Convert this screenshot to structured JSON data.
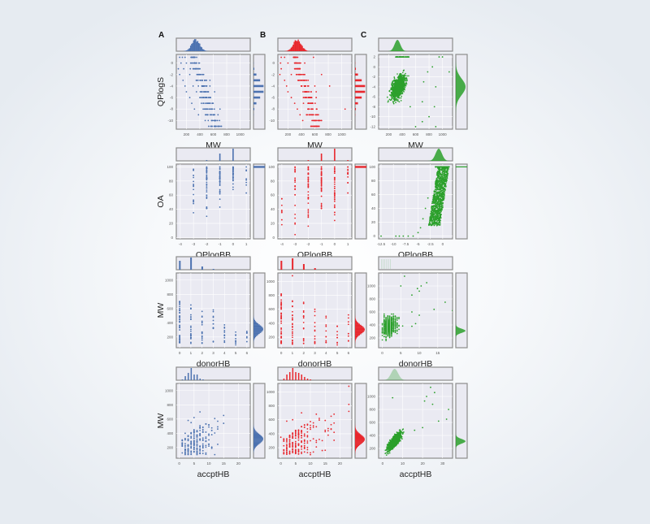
{
  "figure": {
    "column_labels": [
      "A",
      "B",
      "C"
    ],
    "colors": {
      "A": "#4c72b0",
      "B": "#e8272d",
      "C": "#2ca02c",
      "panel_bg": "#eaeaf2",
      "panel_border": "#8c8c8c",
      "grid": "#ffffff",
      "tick_text": "#555555",
      "label_text": "#222222"
    }
  },
  "chart_data": [
    {
      "type": "scatter",
      "panel": "A-row1",
      "column": "A",
      "xlabel": "MW",
      "ylabel": "QPlogS",
      "xticks": [
        200,
        400,
        600,
        800,
        1000
      ],
      "xlim": [
        50,
        1150
      ],
      "yticks": [
        0,
        -2,
        -4,
        -6,
        -8,
        -10
      ],
      "ylim": [
        -11.5,
        1.5
      ],
      "marginal_x": "histogram centered ~320 MW",
      "marginal_y": "histogram bars at integer levels, peak ~ -4 to -5",
      "points_desc": "discrete horizontal bands at integer QPlogS; higher MW → lower QPlogS",
      "points": [
        [
          100,
          1
        ],
        [
          140,
          1
        ],
        [
          180,
          1
        ],
        [
          120,
          0
        ],
        [
          200,
          0
        ],
        [
          280,
          0
        ],
        [
          80,
          -1
        ],
        [
          160,
          -1
        ],
        [
          300,
          -1
        ],
        [
          100,
          -2
        ],
        [
          250,
          -2
        ],
        [
          400,
          -2
        ],
        [
          150,
          -3
        ],
        [
          350,
          -3
        ],
        [
          500,
          -3
        ],
        [
          550,
          -3
        ],
        [
          180,
          -4
        ],
        [
          300,
          -4
        ],
        [
          450,
          -4
        ],
        [
          550,
          -4
        ],
        [
          200,
          -5
        ],
        [
          350,
          -5
        ],
        [
          480,
          -5
        ],
        [
          620,
          -5
        ],
        [
          250,
          -6
        ],
        [
          400,
          -6
        ],
        [
          500,
          -6
        ],
        [
          280,
          -7
        ],
        [
          450,
          -7
        ],
        [
          320,
          -8
        ],
        [
          450,
          -8
        ],
        [
          700,
          -8
        ],
        [
          380,
          -9
        ],
        [
          520,
          -9
        ],
        [
          480,
          -10
        ],
        [
          620,
          -10
        ],
        [
          580,
          -11
        ]
      ]
    },
    {
      "type": "scatter",
      "panel": "B-row1",
      "column": "B",
      "xlabel": "MW",
      "ylabel": "",
      "xticks": [
        200,
        400,
        600,
        800,
        1000
      ],
      "xlim": [
        50,
        1150
      ],
      "yticks": [
        0,
        -2,
        -4,
        -6,
        -8,
        -10
      ],
      "ylim": [
        -11.5,
        1.5
      ],
      "marginal_x": "histogram centered ~330 MW",
      "marginal_y": "histogram bars at integer levels",
      "points": [
        [
          100,
          1
        ],
        [
          150,
          1
        ],
        [
          580,
          1
        ],
        [
          90,
          0
        ],
        [
          200,
          0
        ],
        [
          300,
          0
        ],
        [
          450,
          0
        ],
        [
          100,
          -1
        ],
        [
          300,
          -1
        ],
        [
          80,
          -2
        ],
        [
          250,
          -2
        ],
        [
          450,
          -2
        ],
        [
          700,
          -2
        ],
        [
          150,
          -3
        ],
        [
          350,
          -3
        ],
        [
          500,
          -3
        ],
        [
          180,
          -4
        ],
        [
          400,
          -4
        ],
        [
          600,
          -4
        ],
        [
          820,
          -4
        ],
        [
          200,
          -5
        ],
        [
          450,
          -5
        ],
        [
          620,
          -5
        ],
        [
          250,
          -6
        ],
        [
          450,
          -6
        ],
        [
          620,
          -6
        ],
        [
          300,
          -7
        ],
        [
          500,
          -7
        ],
        [
          340,
          -8
        ],
        [
          500,
          -8
        ],
        [
          1050,
          -8
        ],
        [
          380,
          -9
        ],
        [
          620,
          -9
        ],
        [
          420,
          -10
        ],
        [
          600,
          -10
        ],
        [
          700,
          -10
        ],
        [
          580,
          -11
        ]
      ]
    },
    {
      "type": "scatter",
      "panel": "C-row1",
      "column": "C",
      "xlabel": "MW",
      "ylabel": "",
      "xticks": [
        200,
        400,
        600,
        800,
        1000
      ],
      "xlim": [
        50,
        1150
      ],
      "yticks": [
        2,
        0,
        -2,
        -4,
        -6,
        -8,
        -10,
        -12
      ],
      "ylim": [
        -12.5,
        2.5
      ],
      "marginal_x": "density peak ~330 MW",
      "marginal_y": "density peak ~ -4",
      "points_desc": "dense continuous cloud, negative correlation",
      "points": [
        [
          850,
          0
        ],
        [
          1000,
          2
        ],
        [
          950,
          2
        ],
        [
          720,
          -3
        ],
        [
          780,
          -1
        ],
        [
          1100,
          -1
        ],
        [
          900,
          -4
        ],
        [
          700,
          -7
        ],
        [
          880,
          -8
        ],
        [
          800,
          -10
        ],
        [
          700,
          -11
        ],
        [
          900,
          -12
        ],
        [
          600,
          -12
        ],
        [
          520,
          -8
        ]
      ]
    },
    {
      "type": "scatter",
      "panel": "A-row2",
      "column": "A",
      "xlabel": "QPlogBB",
      "ylabel": "OA",
      "xticks": [
        -4,
        -3,
        -2,
        -1,
        0,
        1
      ],
      "xlim": [
        -4.3,
        1.3
      ],
      "yticks": [
        0,
        20,
        40,
        60,
        80,
        100
      ],
      "ylim": [
        -2,
        104
      ],
      "marginal_x": "bars at -2, -1 (tall), 0 (tallest), 1",
      "marginal_y": "single bar at 100",
      "points": [
        [
          -3,
          95
        ],
        [
          -3,
          88
        ],
        [
          -3,
          85
        ],
        [
          -3,
          68
        ],
        [
          -3,
          52
        ],
        [
          -3,
          48
        ],
        [
          -3,
          35
        ],
        [
          -2,
          100
        ],
        [
          -2,
          30
        ],
        [
          -1,
          100
        ],
        [
          -1,
          43
        ],
        [
          0,
          100
        ],
        [
          0,
          68
        ],
        [
          1,
          100
        ],
        [
          1,
          63
        ]
      ]
    },
    {
      "type": "scatter",
      "panel": "B-row2",
      "column": "B",
      "xlabel": "QPlogBB",
      "ylabel": "",
      "xticks": [
        -4,
        -3,
        -2,
        -1,
        0,
        1
      ],
      "xlim": [
        -4.3,
        1.3
      ],
      "yticks": [
        0,
        20,
        40,
        60,
        80,
        100
      ],
      "ylim": [
        -2,
        104
      ],
      "marginal_x": "bars at -2, -1, 0 (tallest), 1",
      "marginal_y": "single bar at ~98",
      "points": [
        [
          -4,
          55
        ],
        [
          -4,
          37
        ],
        [
          -4,
          25
        ],
        [
          -4,
          18
        ],
        [
          -3,
          100
        ],
        [
          -3,
          4
        ],
        [
          -2,
          100
        ],
        [
          -2,
          16
        ],
        [
          -1,
          100
        ],
        [
          -1,
          41
        ],
        [
          0,
          100
        ],
        [
          0,
          62
        ],
        [
          0,
          24
        ],
        [
          1,
          100
        ],
        [
          1,
          63
        ]
      ]
    },
    {
      "type": "scatter",
      "panel": "C-row2",
      "column": "C",
      "xlabel": "QPlogBB",
      "ylabel": "",
      "xticks": [
        -12.5,
        -10.0,
        -7.5,
        -5.0,
        -2.5,
        0.0
      ],
      "xlim": [
        -13,
        2
      ],
      "yticks": [
        0,
        20,
        40,
        60,
        80,
        100
      ],
      "ylim": [
        -4,
        104
      ],
      "marginal_x": "density peak ~ -0.8",
      "marginal_y": "thin line at 100",
      "points": [
        [
          -12.5,
          0
        ],
        [
          -9.5,
          0
        ],
        [
          -8.8,
          0
        ],
        [
          -8,
          0
        ],
        [
          -7,
          0
        ],
        [
          -6,
          0
        ],
        [
          -5,
          5
        ],
        [
          -4.5,
          12
        ],
        [
          -4,
          25
        ],
        [
          -3.5,
          40
        ],
        [
          -3,
          55
        ],
        [
          -1,
          28
        ]
      ]
    },
    {
      "type": "scatter",
      "panel": "A-row3",
      "column": "A",
      "xlabel": "donorHB",
      "ylabel": "MW",
      "xticks": [
        0,
        1,
        2,
        3,
        4,
        5,
        6
      ],
      "xlim": [
        -0.3,
        6.3
      ],
      "yticks": [
        200,
        400,
        600,
        800,
        1000
      ],
      "ylim": [
        50,
        1100
      ],
      "marginal_x": "bars: 0 tall, 1 tallest, 2 small, 3 tiny",
      "marginal_y": "histogram peak ~300",
      "points": [
        [
          0,
          700
        ],
        [
          0,
          130
        ],
        [
          1,
          650
        ],
        [
          1,
          110
        ],
        [
          2,
          560
        ],
        [
          2,
          120
        ],
        [
          3,
          580
        ],
        [
          3,
          140
        ],
        [
          4,
          370
        ],
        [
          4,
          230
        ],
        [
          4,
          130
        ],
        [
          5,
          270
        ],
        [
          5,
          90
        ],
        [
          6,
          280
        ]
      ]
    },
    {
      "type": "scatter",
      "panel": "B-row3",
      "column": "B",
      "xlabel": "donorHB",
      "ylabel": "",
      "xticks": [
        0,
        1,
        2,
        3,
        4,
        5,
        6
      ],
      "xlim": [
        -0.3,
        6.3
      ],
      "yticks": [
        200,
        400,
        600,
        800,
        1000
      ],
      "ylim": [
        50,
        1120
      ],
      "marginal_x": "bars: 0 tall, 1 tallest, 2 medium, 3 small",
      "marginal_y": "histogram peak ~300",
      "points": [
        [
          0,
          820
        ],
        [
          0,
          120
        ],
        [
          1,
          1080
        ],
        [
          1,
          720
        ],
        [
          1,
          100
        ],
        [
          2,
          700
        ],
        [
          2,
          110
        ],
        [
          3,
          600
        ],
        [
          3,
          120
        ],
        [
          4,
          500
        ],
        [
          4,
          150
        ],
        [
          5,
          360
        ],
        [
          5,
          90
        ],
        [
          6,
          520
        ],
        [
          6,
          420
        ],
        [
          6,
          250
        ]
      ]
    },
    {
      "type": "scatter",
      "panel": "C-row3",
      "column": "C",
      "xlabel": "donorHB",
      "ylabel": "",
      "xticks": [
        0,
        5,
        10,
        15
      ],
      "xlim": [
        -1,
        19
      ],
      "yticks": [
        200,
        400,
        600,
        800,
        1000
      ],
      "ylim": [
        50,
        1200
      ],
      "marginal_x": "faint density near 0-2",
      "marginal_y": "density peak ~300",
      "points": [
        [
          6,
          1150
        ],
        [
          12,
          1050
        ],
        [
          10.5,
          1000
        ],
        [
          9.5,
          960
        ],
        [
          5,
          1000
        ],
        [
          10,
          920
        ],
        [
          8,
          860
        ],
        [
          17,
          750
        ],
        [
          14,
          640
        ],
        [
          19,
          620
        ],
        [
          8,
          600
        ],
        [
          10,
          550
        ],
        [
          9,
          420
        ],
        [
          8,
          380
        ]
      ]
    },
    {
      "type": "scatter",
      "panel": "A-row4",
      "column": "A",
      "xlabel": "accptHB",
      "ylabel": "MW",
      "xticks": [
        0,
        5,
        10,
        15,
        20
      ],
      "xlim": [
        -1,
        24
      ],
      "yticks": [
        200,
        400,
        600,
        800,
        1000
      ],
      "ylim": [
        50,
        1100
      ],
      "marginal_x": "histogram peak at 3-4",
      "marginal_y": "histogram peak ~300",
      "points": [
        [
          1,
          250
        ],
        [
          2,
          100
        ],
        [
          2,
          400
        ],
        [
          3,
          580
        ],
        [
          4,
          550
        ],
        [
          5,
          620
        ],
        [
          7,
          700
        ],
        [
          6,
          100
        ],
        [
          8,
          450
        ],
        [
          9,
          530
        ],
        [
          10,
          520
        ],
        [
          11,
          440
        ],
        [
          13,
          490
        ],
        [
          13,
          460
        ],
        [
          15,
          650
        ],
        [
          15,
          540
        ],
        [
          10,
          220
        ],
        [
          11,
          380
        ]
      ]
    },
    {
      "type": "scatter",
      "panel": "B-row4",
      "column": "B",
      "xlabel": "accptHB",
      "ylabel": "",
      "xticks": [
        0,
        5,
        10,
        15,
        20
      ],
      "xlim": [
        -1,
        24
      ],
      "yticks": [
        200,
        400,
        600,
        800,
        1000
      ],
      "ylim": [
        50,
        1120
      ],
      "marginal_x": "histogram peak at 4",
      "marginal_y": "histogram peak ~300",
      "points": [
        [
          0,
          350
        ],
        [
          1,
          120
        ],
        [
          2,
          580
        ],
        [
          4,
          600
        ],
        [
          7,
          700
        ],
        [
          12,
          680
        ],
        [
          13,
          620
        ],
        [
          15,
          590
        ],
        [
          17,
          650
        ],
        [
          18,
          680
        ],
        [
          17,
          530
        ],
        [
          15,
          450
        ],
        [
          18,
          420
        ],
        [
          23,
          1080
        ],
        [
          23,
          820
        ],
        [
          23,
          720
        ],
        [
          16,
          380
        ],
        [
          12,
          500
        ]
      ]
    },
    {
      "type": "scatter",
      "panel": "C-row4",
      "column": "C",
      "xlabel": "accptHB",
      "ylabel": "",
      "xticks": [
        0,
        10,
        20,
        30
      ],
      "xlim": [
        -2,
        35
      ],
      "yticks": [
        200,
        400,
        600,
        800,
        1000
      ],
      "ylim": [
        50,
        1200
      ],
      "marginal_x": "density peak ~6",
      "marginal_y": "density peak ~300",
      "points_desc": "dense cloud, positive correlation",
      "points": [
        [
          24,
          1140
        ],
        [
          26,
          1060
        ],
        [
          22,
          1000
        ],
        [
          5,
          980
        ],
        [
          21,
          930
        ],
        [
          25,
          880
        ],
        [
          33,
          800
        ],
        [
          28,
          620
        ],
        [
          32,
          650
        ],
        [
          20,
          520
        ],
        [
          16,
          480
        ]
      ]
    }
  ]
}
